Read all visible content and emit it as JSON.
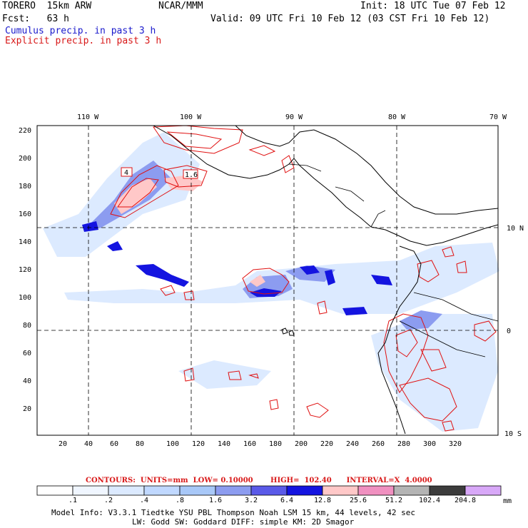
{
  "header": {
    "model": "TORERO",
    "resolution": "15km ARW",
    "org": "NCAR/MMM",
    "init_label": "Init: 18 UTC Tue 07 Feb 12",
    "fcst_label": "Fcst:",
    "fcst_hours": "63 h",
    "valid_label": "Valid: 09 UTC Fri 10 Feb 12 (03 CST Fri 10 Feb 12)",
    "field_1": "Cumulus precip. in past 3 h",
    "field_2": "Explicit precip. in past 3 h"
  },
  "map": {
    "lon_labels": [
      "110 W",
      "100 W",
      "90 W",
      "80 W",
      "70 W"
    ],
    "lat_labels": [
      "10 N",
      "0",
      "10 S"
    ],
    "y_ticks": [
      "220",
      "200",
      "180",
      "160",
      "140",
      "120",
      "100",
      "80",
      "60",
      "40",
      "20"
    ],
    "x_ticks": [
      "20",
      "40",
      "60",
      "80",
      "100",
      "120",
      "140",
      "160",
      "180",
      "200",
      "220",
      "240",
      "260",
      "280",
      "300",
      "320"
    ],
    "box_labels": [
      "4",
      "1.6"
    ],
    "colors": {
      "land": "#000000",
      "grid": "#000000",
      "contour": "#e01010"
    }
  },
  "contours": {
    "text": "CONTOURS:  UNITS=mm  LOW= 0.10000       HIGH=  102.40      INTERVAL=X  4.0000"
  },
  "colorbar": {
    "levels": [
      ".1",
      ".2",
      ".4",
      ".8",
      "1.6",
      "3.2",
      "6.4",
      "12.8",
      "25.6",
      "51.2",
      "102.4",
      "204.8"
    ],
    "colors": [
      "#ffffff",
      "#f0f6ff",
      "#dceaff",
      "#c0d8ff",
      "#a8c8f8",
      "#8c9cf0",
      "#5a5ae8",
      "#1414e0",
      "#ffc8c8",
      "#f090c0",
      "#b4b4b4",
      "#3c3c3c",
      "#d8a8f8"
    ],
    "unit": "mm"
  },
  "footer": {
    "line1": "Model Info: V3.3.1    Tiedtke YSU PBL  Thompson    Noah LSM  15 km,   44 levels,   42 sec",
    "line2": "LW: Godd SW: Goddard DIFF: simple KM: 2D Smagor"
  }
}
